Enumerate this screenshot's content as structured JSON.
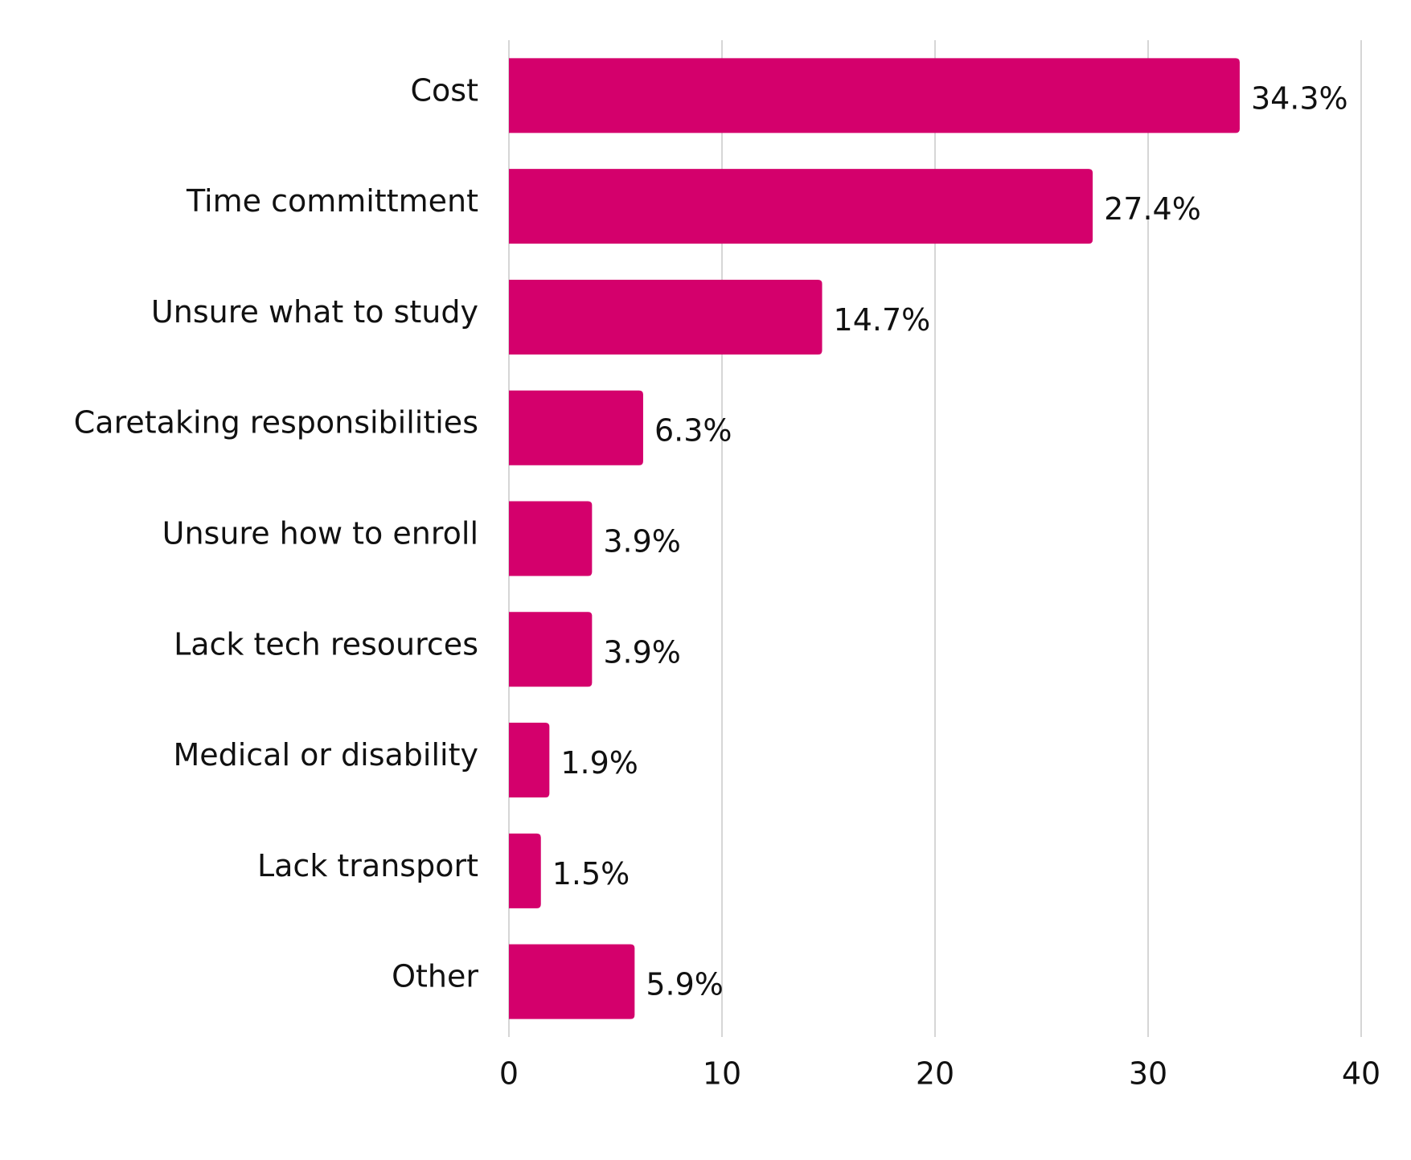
{
  "chart_data": {
    "type": "bar",
    "orientation": "horizontal",
    "categories": [
      "Cost",
      "Time committment",
      "Unsure what to study",
      "Caretaking responsibilities",
      "Unsure how to enroll",
      "Lack tech resources",
      "Medical or disability",
      "Lack transport",
      "Other"
    ],
    "values": [
      34.3,
      27.4,
      14.7,
      6.3,
      3.9,
      3.9,
      1.9,
      1.5,
      5.9
    ],
    "value_labels": [
      "34.3%",
      "27.4%",
      "14.7%",
      "6.3%",
      "3.9%",
      "3.9%",
      "1.9%",
      "1.5%",
      "5.9%"
    ],
    "xlim": [
      0,
      40
    ],
    "x_ticks": [
      0,
      10,
      20,
      30,
      40
    ],
    "x_tick_labels": [
      "0",
      "10",
      "20",
      "30",
      "40"
    ],
    "grid": "vertical",
    "legend": "none",
    "bar_color": "#d4006c",
    "title": "",
    "xlabel": "",
    "ylabel": ""
  }
}
